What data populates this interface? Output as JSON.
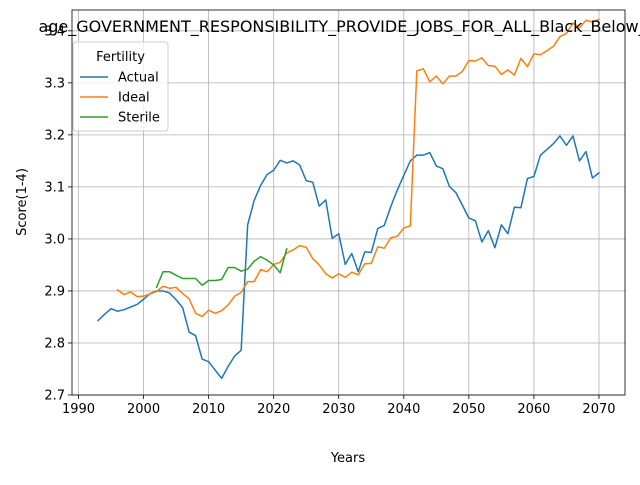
{
  "chart_data": {
    "type": "line",
    "title": "age_GOVERNMENT_RESPONSIBILITY_PROVIDE_JOBS_FOR_ALL_Black_Below_A",
    "xlabel": "Years",
    "ylabel": "Score(1-4)",
    "xlim": [
      1989,
      2074
    ],
    "ylim": [
      2.7,
      3.44
    ],
    "xticks": [
      1990,
      2000,
      2010,
      2020,
      2030,
      2040,
      2050,
      2060,
      2070
    ],
    "yticks": [
      2.7,
      2.8,
      2.9,
      3.0,
      3.1,
      3.2,
      3.3,
      3.4
    ],
    "grid": true,
    "legend": {
      "title": "Fertility",
      "placement": "top-left"
    },
    "series": [
      {
        "name": "Actual",
        "color": "#1f77b4",
        "points": [
          [
            1993,
            2.843
          ],
          [
            1994,
            2.855
          ],
          [
            1995,
            2.866
          ],
          [
            1996,
            2.861
          ],
          [
            1997,
            2.864
          ],
          [
            1998,
            2.869
          ],
          [
            1999,
            2.874
          ],
          [
            2000,
            2.884
          ],
          [
            2001,
            2.895
          ],
          [
            2002,
            2.9
          ],
          [
            2003,
            2.9
          ],
          [
            2004,
            2.896
          ],
          [
            2005,
            2.883
          ],
          [
            2006,
            2.868
          ],
          [
            2007,
            2.821
          ],
          [
            2008,
            2.814
          ],
          [
            2009,
            2.769
          ],
          [
            2010,
            2.764
          ],
          [
            2011,
            2.748
          ],
          [
            2012,
            2.732
          ],
          [
            2013,
            2.755
          ],
          [
            2014,
            2.775
          ],
          [
            2015,
            2.786
          ],
          [
            2016,
            3.027
          ],
          [
            2017,
            3.074
          ],
          [
            2018,
            3.103
          ],
          [
            2019,
            3.124
          ],
          [
            2020,
            3.132
          ],
          [
            2021,
            3.151
          ],
          [
            2022,
            3.146
          ],
          [
            2023,
            3.15
          ],
          [
            2024,
            3.142
          ],
          [
            2025,
            3.112
          ],
          [
            2026,
            3.109
          ],
          [
            2027,
            3.063
          ],
          [
            2028,
            3.075
          ],
          [
            2029,
            3.001
          ],
          [
            2030,
            3.01
          ],
          [
            2031,
            2.951
          ],
          [
            2032,
            2.972
          ],
          [
            2033,
            2.937
          ],
          [
            2034,
            2.975
          ],
          [
            2035,
            2.974
          ],
          [
            2036,
            3.02
          ],
          [
            2037,
            3.026
          ],
          [
            2038,
            3.062
          ],
          [
            2039,
            3.094
          ],
          [
            2040,
            3.122
          ],
          [
            2041,
            3.15
          ],
          [
            2042,
            3.161
          ],
          [
            2043,
            3.161
          ],
          [
            2044,
            3.166
          ],
          [
            2045,
            3.14
          ],
          [
            2046,
            3.135
          ],
          [
            2047,
            3.101
          ],
          [
            2048,
            3.089
          ],
          [
            2049,
            3.065
          ],
          [
            2050,
            3.04
          ],
          [
            2051,
            3.035
          ],
          [
            2052,
            2.994
          ],
          [
            2053,
            3.016
          ],
          [
            2054,
            2.983
          ],
          [
            2055,
            3.027
          ],
          [
            2056,
            3.01
          ],
          [
            2057,
            3.061
          ],
          [
            2058,
            3.06
          ],
          [
            2059,
            3.116
          ],
          [
            2060,
            3.12
          ],
          [
            2061,
            3.161
          ],
          [
            2062,
            3.172
          ],
          [
            2063,
            3.183
          ],
          [
            2064,
            3.198
          ],
          [
            2065,
            3.18
          ],
          [
            2066,
            3.198
          ],
          [
            2067,
            3.15
          ],
          [
            2068,
            3.168
          ],
          [
            2069,
            3.117
          ],
          [
            2070,
            3.127
          ]
        ]
      },
      {
        "name": "Ideal",
        "color": "#ff7f0e",
        "points": [
          [
            1996,
            2.902
          ],
          [
            1997,
            2.893
          ],
          [
            1998,
            2.898
          ],
          [
            1999,
            2.889
          ],
          [
            2000,
            2.89
          ],
          [
            2001,
            2.894
          ],
          [
            2002,
            2.899
          ],
          [
            2003,
            2.909
          ],
          [
            2004,
            2.905
          ],
          [
            2005,
            2.907
          ],
          [
            2006,
            2.895
          ],
          [
            2007,
            2.885
          ],
          [
            2008,
            2.857
          ],
          [
            2009,
            2.851
          ],
          [
            2010,
            2.863
          ],
          [
            2011,
            2.857
          ],
          [
            2012,
            2.862
          ],
          [
            2013,
            2.873
          ],
          [
            2014,
            2.89
          ],
          [
            2015,
            2.897
          ],
          [
            2016,
            2.918
          ],
          [
            2017,
            2.918
          ],
          [
            2018,
            2.941
          ],
          [
            2019,
            2.937
          ],
          [
            2020,
            2.951
          ],
          [
            2021,
            2.955
          ],
          [
            2022,
            2.973
          ],
          [
            2023,
            2.979
          ],
          [
            2024,
            2.987
          ],
          [
            2025,
            2.984
          ],
          [
            2026,
            2.962
          ],
          [
            2027,
            2.95
          ],
          [
            2028,
            2.933
          ],
          [
            2029,
            2.925
          ],
          [
            2030,
            2.933
          ],
          [
            2031,
            2.926
          ],
          [
            2032,
            2.936
          ],
          [
            2033,
            2.931
          ],
          [
            2034,
            2.952
          ],
          [
            2035,
            2.953
          ],
          [
            2036,
            2.985
          ],
          [
            2037,
            2.982
          ],
          [
            2038,
            3.002
          ],
          [
            2039,
            3.005
          ],
          [
            2040,
            3.021
          ],
          [
            2041,
            3.025
          ],
          [
            2042,
            3.323
          ],
          [
            2043,
            3.327
          ],
          [
            2044,
            3.302
          ],
          [
            2045,
            3.313
          ],
          [
            2046,
            3.298
          ],
          [
            2047,
            3.313
          ],
          [
            2048,
            3.313
          ],
          [
            2049,
            3.322
          ],
          [
            2050,
            3.343
          ],
          [
            2051,
            3.342
          ],
          [
            2052,
            3.348
          ],
          [
            2053,
            3.333
          ],
          [
            2054,
            3.332
          ],
          [
            2055,
            3.316
          ],
          [
            2056,
            3.325
          ],
          [
            2057,
            3.315
          ],
          [
            2058,
            3.347
          ],
          [
            2059,
            3.331
          ],
          [
            2060,
            3.356
          ],
          [
            2061,
            3.354
          ],
          [
            2062,
            3.362
          ],
          [
            2063,
            3.37
          ],
          [
            2064,
            3.389
          ],
          [
            2065,
            3.395
          ],
          [
            2066,
            3.415
          ],
          [
            2067,
            3.406
          ],
          [
            2068,
            3.42
          ],
          [
            2069,
            3.417
          ],
          [
            2070,
            3.422
          ]
        ]
      },
      {
        "name": "Sterile",
        "color": "#2ca02c",
        "points": [
          [
            2002,
            2.907
          ],
          [
            2003,
            2.937
          ],
          [
            2004,
            2.937
          ],
          [
            2005,
            2.93
          ],
          [
            2006,
            2.924
          ],
          [
            2007,
            2.924
          ],
          [
            2008,
            2.924
          ],
          [
            2009,
            2.911
          ],
          [
            2010,
            2.92
          ],
          [
            2011,
            2.92
          ],
          [
            2012,
            2.922
          ],
          [
            2013,
            2.945
          ],
          [
            2014,
            2.945
          ],
          [
            2015,
            2.938
          ],
          [
            2016,
            2.942
          ],
          [
            2017,
            2.957
          ],
          [
            2018,
            2.966
          ],
          [
            2019,
            2.959
          ],
          [
            2020,
            2.95
          ],
          [
            2021,
            2.935
          ],
          [
            2022,
            2.981
          ]
        ]
      }
    ]
  }
}
